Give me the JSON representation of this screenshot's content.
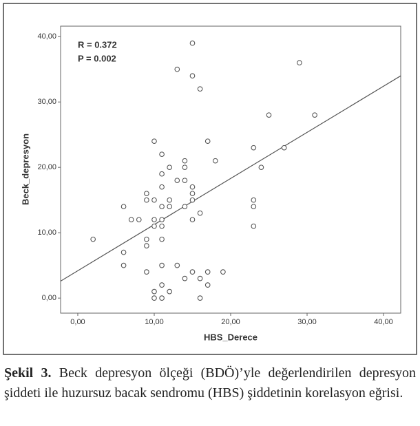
{
  "chart_data": {
    "type": "scatter",
    "annotations": [
      "R = 0.372",
      "P = 0.002"
    ],
    "x_label": "HBS_Derece",
    "y_label": "Beck_depresyon",
    "x": [
      2,
      6,
      6,
      6,
      7,
      8,
      9,
      9,
      9,
      9,
      9,
      10,
      10,
      10,
      10,
      10,
      10,
      11,
      11,
      11,
      11,
      11,
      11,
      11,
      11,
      11,
      11,
      12,
      12,
      12,
      12,
      13,
      13,
      13,
      14,
      14,
      14,
      14,
      14,
      15,
      15,
      15,
      15,
      15,
      15,
      15,
      16,
      16,
      16,
      16,
      17,
      17,
      17,
      18,
      19,
      23,
      23,
      23,
      23,
      24,
      25,
      27,
      29,
      31
    ],
    "values": [
      9,
      14,
      7,
      5,
      12,
      12,
      16,
      15,
      9,
      8,
      4,
      24,
      15,
      12,
      11,
      1,
      0,
      22,
      19,
      17,
      14,
      12,
      11,
      9,
      5,
      2,
      0,
      20,
      15,
      14,
      1,
      35,
      18,
      5,
      21,
      20,
      18,
      14,
      3,
      39,
      34,
      17,
      16,
      15,
      12,
      4,
      32,
      13,
      3,
      0,
      24,
      4,
      2,
      21,
      4,
      23,
      15,
      14,
      11,
      20,
      28,
      23,
      36,
      28
    ],
    "color": "#555555",
    "trendline": {
      "x": [
        -2.25,
        42.25
      ],
      "y": [
        2.6,
        34
      ]
    },
    "xlim": [
      -2.25,
      42.25
    ],
    "ylim": [
      -2.3,
      41.6
    ],
    "xticks": [
      {
        "value": 0,
        "label": "0,00"
      },
      {
        "value": 10,
        "label": "10,00"
      },
      {
        "value": 20,
        "label": "20,00"
      },
      {
        "value": 30,
        "label": "30,00"
      },
      {
        "value": 40,
        "label": "40,00"
      }
    ],
    "yticks": [
      {
        "value": 0,
        "label": "0,00"
      },
      {
        "value": 10,
        "label": "10,00"
      },
      {
        "value": 20,
        "label": "20,00"
      },
      {
        "value": 30,
        "label": "30,00"
      },
      {
        "value": 40,
        "label": "40,00"
      }
    ]
  },
  "caption": {
    "label": "Şekil 3.",
    "text": "Beck depresyon ölçeği (BDÖ)’yle değerlendirilen depresyon şiddeti ile huzursuz bacak sendromu (HBS) şiddetinin korelasyon eğrisi."
  }
}
